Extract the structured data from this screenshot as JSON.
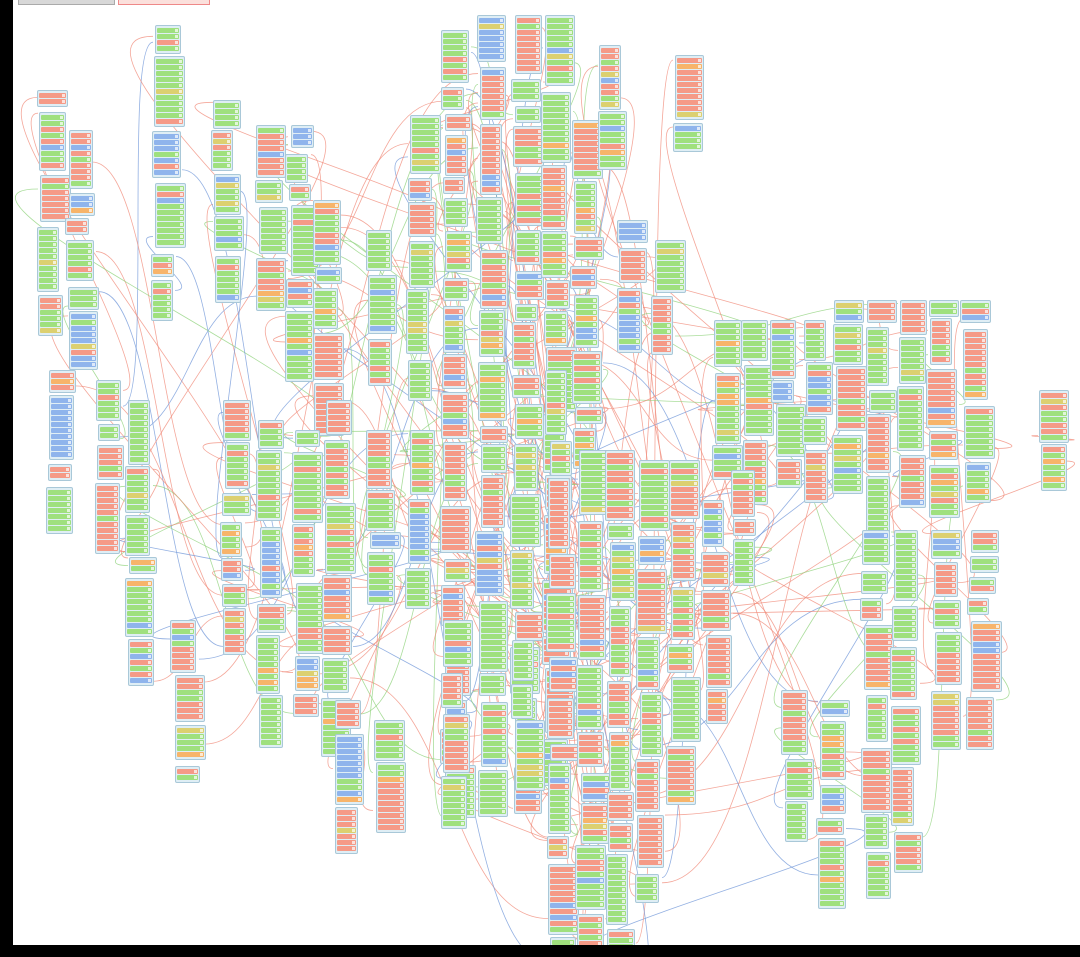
{
  "window": {
    "tabs": [
      {
        "label": ""
      },
      {
        "label": ""
      }
    ]
  },
  "colors": {
    "background": "#ffffff",
    "node_frame": "#dfeef5",
    "row_green": "#9fe07e",
    "row_red": "#f59a87",
    "row_orange": "#f7b46a",
    "row_blue": "#8fb4ec",
    "wire_red": "#f08a78",
    "wire_green": "#8ed27a",
    "wire_blue": "#6f95d8"
  }
}
